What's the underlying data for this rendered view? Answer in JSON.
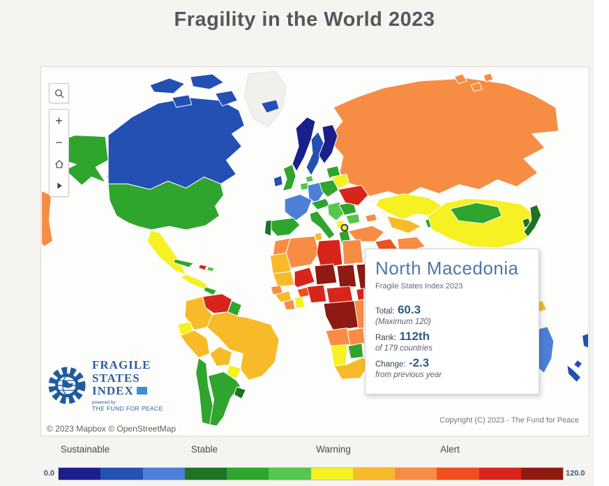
{
  "page": {
    "title": "Fragility in the World 2023"
  },
  "palette": {
    "navy": "#1a1f8c",
    "blue": "#2450b4",
    "lightblue": "#4d7fd6",
    "darkgreen": "#1d7324",
    "green": "#2fa52d",
    "lightgreen": "#55c64e",
    "yellow": "#f5f122",
    "gold": "#f7bb2a",
    "orange": "#f78d44",
    "redorange": "#f04f22",
    "red": "#d8251c",
    "darkred": "#8e1a12",
    "uncolored": "#f1f0ed",
    "ocean": "#fdfdfc"
  },
  "controls": {
    "search_icon": "magnifier",
    "zoom_in_label": "+",
    "zoom_out_label": "−",
    "home_icon": "home",
    "expand_icon": "play-arrow"
  },
  "tooltip": {
    "country": "North Macedonia",
    "subtitle": "Fragile States Index 2023",
    "total_label": "Total:",
    "total_value": "60.3",
    "total_note": "(Maximum 120)",
    "rank_label": "Rank:",
    "rank_value": "112th",
    "rank_note": "of 179 countries",
    "change_label": "Change:",
    "change_value": "-2.3",
    "change_note": "from previous year"
  },
  "logo": {
    "line1": "FRAGILE",
    "line2": "STATES",
    "line3": "INDEX",
    "powered_by": "powered by",
    "org": "THE FUND FOR PEACE"
  },
  "attribution": "© 2023 Mapbox © OpenStreetMap",
  "copyright": "Copyright (C) 2023 - The Fund for Peace",
  "legend": {
    "categories": [
      "Sustainable",
      "Stable",
      "Warning",
      "Alert"
    ],
    "min": "0.0",
    "max": "120.0",
    "colors": [
      "#1a1f8c",
      "#2450b4",
      "#4d7fd6",
      "#1d7324",
      "#2fa52d",
      "#55c64e",
      "#f5f122",
      "#f7bb2a",
      "#f78d44",
      "#f04f22",
      "#d8251c",
      "#8e1a12"
    ]
  },
  "map_data": {
    "type": "choropleth",
    "index": "Fragile States Index 2023",
    "scale_min": 0,
    "scale_max": 120,
    "highlighted_country": {
      "name": "North Macedonia",
      "total": 60.3,
      "maximum": 120,
      "rank": "112th",
      "countries": 179,
      "change": -2.3
    },
    "country_colors": {
      "Canada": "blue",
      "United States": "green",
      "Alaska (US)": "green",
      "Greenland": "uncolored",
      "Mexico": "yellow",
      "Cuba": "green",
      "Haiti": "red",
      "Venezuela": "red",
      "Colombia": "gold",
      "Brazil": "gold",
      "Peru": "gold",
      "Bolivia": "gold",
      "Ecuador": "yellow",
      "Paraguay": "yellow",
      "Chile": "green",
      "Argentina": "green",
      "Uruguay": "darkgreen",
      "Guyana": "green",
      "Iceland": "blue",
      "Ireland": "blue",
      "United Kingdom": "green",
      "Norway": "navy",
      "Sweden": "blue",
      "Finland": "navy",
      "France": "lightblue",
      "Germany": "lightblue",
      "Spain": "green",
      "Portugal": "darkgreen",
      "Poland": "green",
      "Italy": "green",
      "Ukraine": "red",
      "Belarus": "yellow",
      "Romania": "green",
      "Greece": "green",
      "North Macedonia": "yellow",
      "Russia": "orange",
      "Kazakhstan": "yellow",
      "Mongolia": "green",
      "China": "yellow",
      "Japan": "darkgreen",
      "South Korea": "darkgreen",
      "Turkey": "orange",
      "Saudi Arabia": "orange",
      "Iran": "orange",
      "Morocco": "orange",
      "Algeria": "orange",
      "Libya": "red",
      "Egypt": "orange",
      "Mali": "red",
      "Niger": "darkred",
      "Chad": "darkred",
      "Sudan": "darkred",
      "Nigeria": "red",
      "Ghana": "yellow",
      "Senegal": "orange",
      "Guinea": "gold",
      "DR Congo": "darkred",
      "Angola": "orange",
      "Zambia": "orange",
      "Namibia": "yellow",
      "Botswana": "green",
      "South Africa": "gold",
      "Australia": "lightblue",
      "New Zealand": "blue",
      "Papua New Guinea": "gold"
    }
  }
}
